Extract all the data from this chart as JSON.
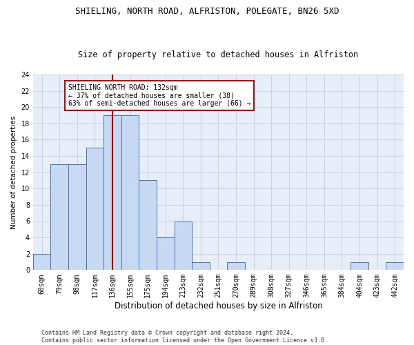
{
  "title1": "SHIELING, NORTH ROAD, ALFRISTON, POLEGATE, BN26 5XD",
  "title2": "Size of property relative to detached houses in Alfriston",
  "xlabel": "Distribution of detached houses by size in Alfriston",
  "ylabel": "Number of detached properties",
  "categories": [
    "60sqm",
    "79sqm",
    "98sqm",
    "117sqm",
    "136sqm",
    "155sqm",
    "175sqm",
    "194sqm",
    "213sqm",
    "232sqm",
    "251sqm",
    "270sqm",
    "289sqm",
    "308sqm",
    "327sqm",
    "346sqm",
    "365sqm",
    "384sqm",
    "404sqm",
    "423sqm",
    "442sqm"
  ],
  "values": [
    2,
    13,
    13,
    15,
    19,
    19,
    11,
    4,
    6,
    1,
    0,
    1,
    0,
    0,
    0,
    0,
    0,
    0,
    1,
    0,
    1
  ],
  "bar_color": "#c6d9f0",
  "bar_edge_color": "#4472c4",
  "vline_index": 4,
  "vline_color": "#aa0000",
  "annotation_text": "SHIELING NORTH ROAD: 132sqm\n← 37% of detached houses are smaller (38)\n63% of semi-detached houses are larger (66) →",
  "annotation_box_color": "#ffffff",
  "annotation_box_edge": "#cc0000",
  "ylim": [
    0,
    24
  ],
  "yticks": [
    0,
    2,
    4,
    6,
    8,
    10,
    12,
    14,
    16,
    18,
    20,
    22,
    24
  ],
  "grid_color": "#c8d4e8",
  "background_color": "#e8eef8",
  "footer_line1": "Contains HM Land Registry data © Crown copyright and database right 2024.",
  "footer_line2": "Contains public sector information licensed under the Open Government Licence v3.0.",
  "title1_fontsize": 9,
  "title2_fontsize": 8.5,
  "xlabel_fontsize": 8.5,
  "ylabel_fontsize": 7.5,
  "tick_fontsize": 7,
  "annotation_fontsize": 7,
  "footer_fontsize": 6
}
